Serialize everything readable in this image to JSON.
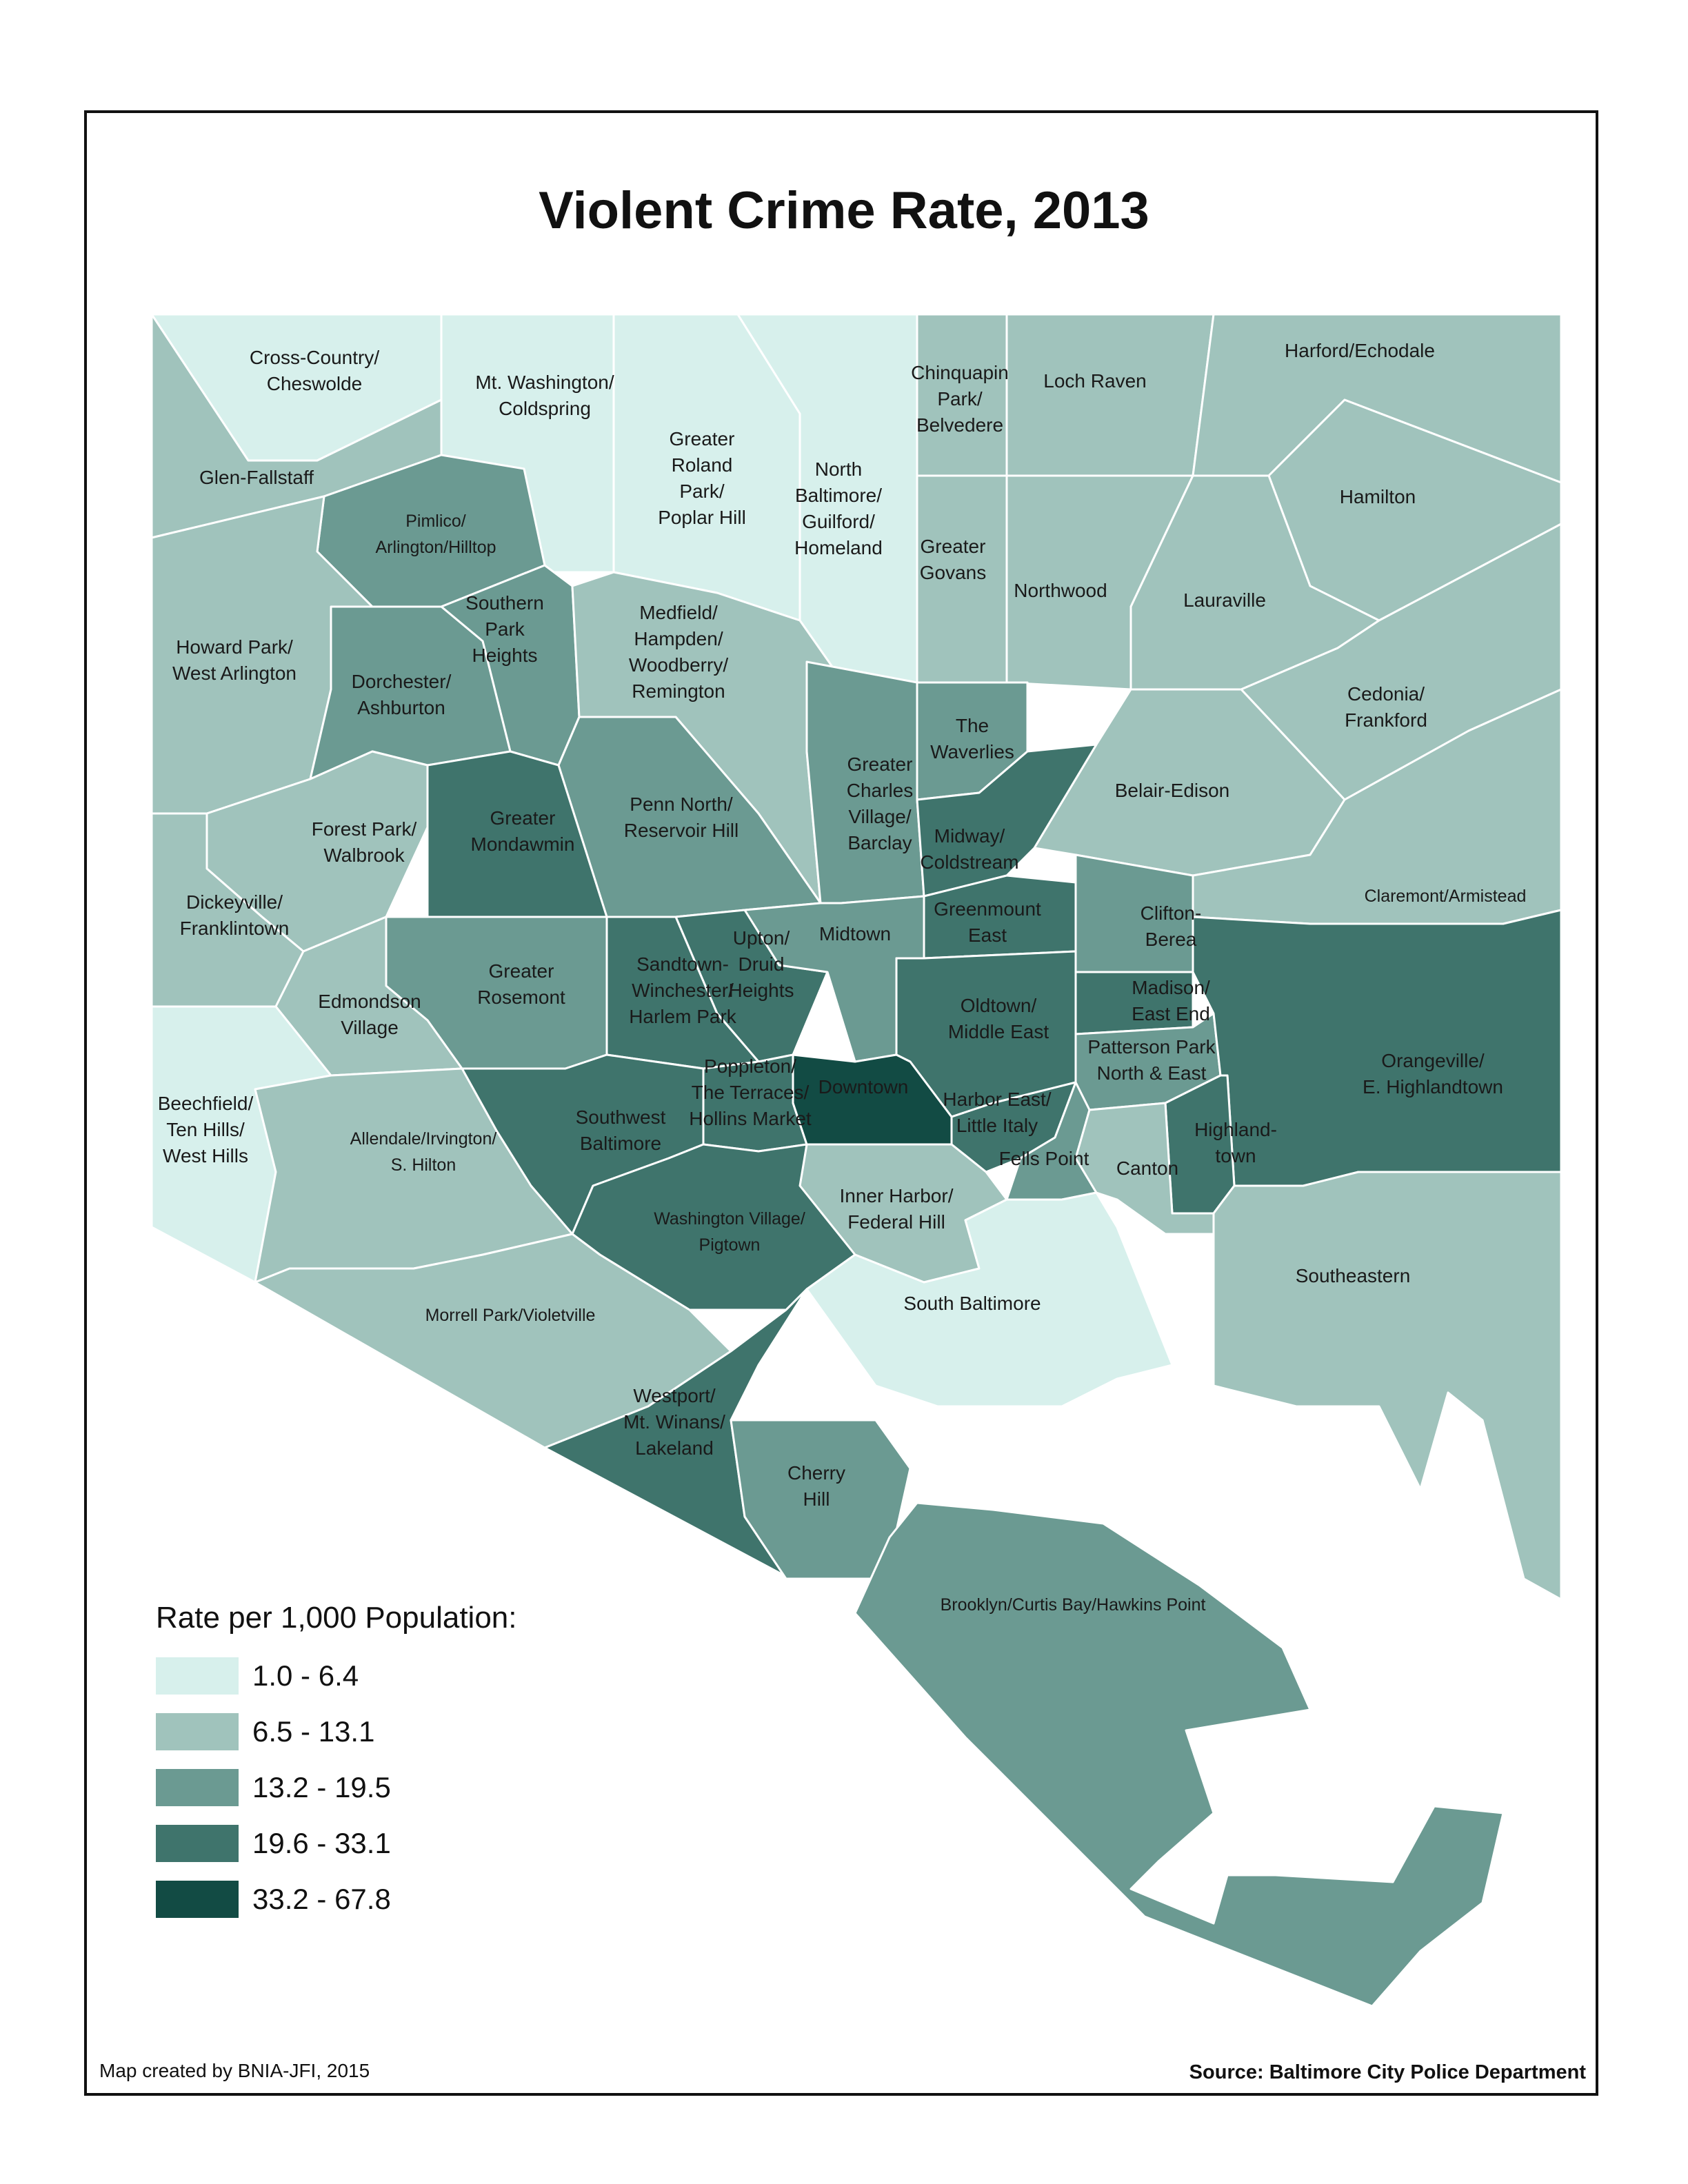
{
  "title": "Violent Crime Rate, 2013",
  "legend": {
    "title": "Rate per 1,000 Population:",
    "classes": [
      {
        "label": "1.0 - 6.4",
        "color": "#d7f0ec"
      },
      {
        "label": "6.5 - 13.1",
        "color": "#a0c3bc"
      },
      {
        "label": "13.2 - 19.5",
        "color": "#6b9a92"
      },
      {
        "label": "19.6 - 33.1",
        "color": "#3f746c"
      },
      {
        "label": "33.2 - 67.8",
        "color": "#124b44"
      }
    ]
  },
  "credit": "Map created by BNIA-JFI, 2015",
  "source": "Source: Baltimore City Police Department",
  "neighborhoods": [
    {
      "lines": [
        "Cross-Country/",
        "Cheswolde"
      ],
      "class": 0
    },
    {
      "lines": [
        "Mt. Washington/",
        "Coldspring"
      ],
      "class": 0
    },
    {
      "lines": [
        "Greater",
        "Roland",
        "Park/",
        "Poplar Hill"
      ],
      "class": 0
    },
    {
      "lines": [
        "North",
        "Baltimore/",
        "Guilford/",
        "Homeland"
      ],
      "class": 0
    },
    {
      "lines": [
        "Chinquapin",
        "Park/",
        "Belvedere"
      ],
      "class": 1
    },
    {
      "lines": [
        "Loch Raven"
      ],
      "class": 1
    },
    {
      "lines": [
        "Harford/Echodale"
      ],
      "class": 1
    },
    {
      "lines": [
        "Glen-Fallstaff"
      ],
      "class": 1
    },
    {
      "lines": [
        "Pimlico/",
        "Arlington/Hilltop"
      ],
      "class": 2
    },
    {
      "lines": [
        "Hamilton"
      ],
      "class": 1
    },
    {
      "lines": [
        "Greater",
        "Govans"
      ],
      "class": 1
    },
    {
      "lines": [
        "Northwood"
      ],
      "class": 1
    },
    {
      "lines": [
        "Lauraville"
      ],
      "class": 1
    },
    {
      "lines": [
        "Southern",
        "Park",
        "Heights"
      ],
      "class": 2
    },
    {
      "lines": [
        "Medfield/",
        "Hampden/",
        "Woodberry/",
        "Remington"
      ],
      "class": 1
    },
    {
      "lines": [
        "Howard Park/",
        "West Arlington"
      ],
      "class": 1
    },
    {
      "lines": [
        "Dorchester/",
        "Ashburton"
      ],
      "class": 2
    },
    {
      "lines": [
        "The",
        "Waverlies"
      ],
      "class": 2
    },
    {
      "lines": [
        "Cedonia/",
        "Frankford"
      ],
      "class": 1
    },
    {
      "lines": [
        "Greater",
        "Charles",
        "Village/",
        "Barclay"
      ],
      "class": 2
    },
    {
      "lines": [
        "Belair-Edison"
      ],
      "class": 1
    },
    {
      "lines": [
        "Penn North/",
        "Reservoir Hill"
      ],
      "class": 2
    },
    {
      "lines": [
        "Greater",
        "Mondawmin"
      ],
      "class": 3
    },
    {
      "lines": [
        "Forest Park/",
        "Walbrook"
      ],
      "class": 1
    },
    {
      "lines": [
        "Midway/",
        "Coldstream"
      ],
      "class": 3
    },
    {
      "lines": [
        "Claremont/Armistead"
      ],
      "class": 1
    },
    {
      "lines": [
        "Dickeyville/",
        "Franklintown"
      ],
      "class": 1
    },
    {
      "lines": [
        "Greenmount",
        "East"
      ],
      "class": 3
    },
    {
      "lines": [
        "Clifton-",
        "Berea"
      ],
      "class": 2
    },
    {
      "lines": [
        "Upton/",
        "Druid",
        "Heights"
      ],
      "class": 3
    },
    {
      "lines": [
        "Midtown"
      ],
      "class": 2
    },
    {
      "lines": [
        "Sandtown-",
        "Winchester/",
        "Harlem Park"
      ],
      "class": 3
    },
    {
      "lines": [
        "Greater",
        "Rosemont"
      ],
      "class": 2
    },
    {
      "lines": [
        "Madison/",
        "East End"
      ],
      "class": 3
    },
    {
      "lines": [
        "Edmondson",
        "Village"
      ],
      "class": 1
    },
    {
      "lines": [
        "Oldtown/",
        "Middle East"
      ],
      "class": 3
    },
    {
      "lines": [
        "Patterson Park",
        "North & East"
      ],
      "class": 2
    },
    {
      "lines": [
        "Orangeville/",
        "E. Highlandtown"
      ],
      "class": 3
    },
    {
      "lines": [
        "Poppleton/",
        "The Terraces/",
        "Hollins Market"
      ],
      "class": 3
    },
    {
      "lines": [
        "Downtown"
      ],
      "class": 4
    },
    {
      "lines": [
        "Southwest",
        "Baltimore"
      ],
      "class": 3
    },
    {
      "lines": [
        "Harbor East/",
        "Little Italy"
      ],
      "class": 3
    },
    {
      "lines": [
        "Highland-",
        "town"
      ],
      "class": 3
    },
    {
      "lines": [
        "Beechfield/",
        "Ten Hills/",
        "West Hills"
      ],
      "class": 0
    },
    {
      "lines": [
        "Allendale/Irvington/",
        "S. Hilton"
      ],
      "class": 1
    },
    {
      "lines": [
        "Fells Point"
      ],
      "class": 2
    },
    {
      "lines": [
        "Canton"
      ],
      "class": 1
    },
    {
      "lines": [
        "Inner Harbor/",
        "Federal Hill"
      ],
      "class": 1
    },
    {
      "lines": [
        "Washington Village/",
        "Pigtown"
      ],
      "class": 3
    },
    {
      "lines": [
        "Southeastern"
      ],
      "class": 1
    },
    {
      "lines": [
        "South Baltimore"
      ],
      "class": 0
    },
    {
      "lines": [
        "Morrell Park/Violetville"
      ],
      "class": 1
    },
    {
      "lines": [
        "Westport/",
        "Mt. Winans/",
        "Lakeland"
      ],
      "class": 3
    },
    {
      "lines": [
        "Cherry",
        "Hill"
      ],
      "class": 2
    },
    {
      "lines": [
        "Brooklyn/Curtis Bay/Hawkins Point"
      ],
      "class": 2
    }
  ]
}
